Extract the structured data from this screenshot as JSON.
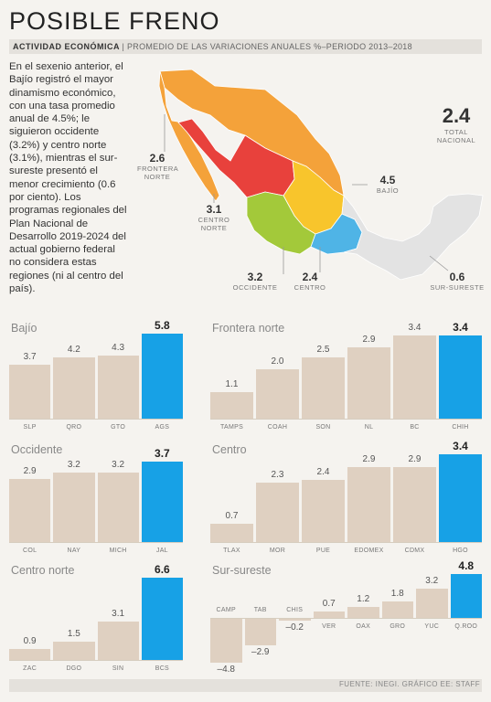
{
  "header": {
    "title": "POSIBLE FRENO",
    "kicker": "ACTIVIDAD ECONÓMICA",
    "subtitle": "PROMEDIO DE LAS VARIACIONES ANUALES %–PERIODO 2013–2018"
  },
  "intro": "En el sexenio anterior, el Bajío registró el mayor dinamismo económico, con una tasa promedio anual de 4.5%; le siguieron occidente (3.2%) y centro norte (3.1%), mientras el sur-sureste presentó el menor crecimiento (0.6 por ciento). Los programas regionales del Plan Nacional de Desarrollo 2019-2024 del actual gobierno federal no considera estas regiones (ni al centro del país).",
  "map": {
    "total_value": "2.4",
    "total_label_1": "TOTAL",
    "total_label_2": "NACIONAL",
    "regions": [
      {
        "value": "2.6",
        "line1": "FRONTERA",
        "line2": "NORTE",
        "color": "#f4a23a"
      },
      {
        "value": "3.1",
        "line1": "CENTRO",
        "line2": "NORTE",
        "color": "#e8413c"
      },
      {
        "value": "4.5",
        "line1": "BAJÍO",
        "line2": "",
        "color": "#f8c52c"
      },
      {
        "value": "3.2",
        "line1": "OCCIDENTE",
        "line2": "",
        "color": "#a3c93a"
      },
      {
        "value": "2.4",
        "line1": "CENTRO",
        "line2": "",
        "color": "#4fb4e6"
      },
      {
        "value": "0.6",
        "line1": "SUR-SURESTE",
        "line2": "",
        "color": "#e3e3e3"
      }
    ]
  },
  "colors": {
    "base": "#dfd0c1",
    "highlight": "#17a1e6"
  },
  "chart_data": [
    {
      "type": "bar",
      "title": "Bajío",
      "categories": [
        "SLP",
        "QRO",
        "GTO",
        "AGS"
      ],
      "values": [
        3.7,
        4.2,
        4.3,
        5.8
      ],
      "labels": [
        "3.7",
        "4.2",
        "4.3",
        "5.8"
      ],
      "highlight": 3
    },
    {
      "type": "bar",
      "title": "Frontera norte",
      "categories": [
        "TAMPS",
        "COAH",
        "SON",
        "NL",
        "BC",
        "CHIH"
      ],
      "values": [
        1.1,
        2.0,
        2.5,
        2.9,
        3.4,
        3.4
      ],
      "labels": [
        "1.1",
        "2.0",
        "2.5",
        "2.9",
        "3.4",
        "3.4"
      ],
      "highlight": 5
    },
    {
      "type": "bar",
      "title": "Occidente",
      "categories": [
        "COL",
        "NAY",
        "MICH",
        "JAL"
      ],
      "values": [
        2.9,
        3.2,
        3.2,
        3.7
      ],
      "labels": [
        "2.9",
        "3.2",
        "3.2",
        "3.7"
      ],
      "highlight": 3
    },
    {
      "type": "bar",
      "title": "Centro",
      "categories": [
        "TLAX",
        "MOR",
        "PUE",
        "EDOMEX",
        "CDMX",
        "HGO"
      ],
      "values": [
        0.7,
        2.3,
        2.4,
        2.9,
        2.9,
        3.4
      ],
      "labels": [
        "0.7",
        "2.3",
        "2.4",
        "2.9",
        "2.9",
        "3.4"
      ],
      "highlight": 5
    },
    {
      "type": "bar",
      "title": "Centro norte",
      "categories": [
        "ZAC",
        "DGO",
        "SIN",
        "BCS"
      ],
      "values": [
        0.9,
        1.5,
        3.1,
        6.6
      ],
      "labels": [
        "0.9",
        "1.5",
        "3.1",
        "6.6"
      ],
      "highlight": 3
    },
    {
      "type": "bar",
      "title": "Sur-sureste",
      "categories": [
        "CAMP",
        "TAB",
        "CHIS",
        "VER",
        "OAX",
        "GRO",
        "YUC",
        "Q.ROO"
      ],
      "values": [
        -4.8,
        -2.9,
        -0.2,
        0.7,
        1.2,
        1.8,
        3.2,
        4.8
      ],
      "labels": [
        "–4.8",
        "–2.9",
        "–0.2",
        "0.7",
        "1.2",
        "1.8",
        "3.2",
        "4.8"
      ],
      "highlight": 7
    }
  ],
  "source": "FUENTE: INEGI. GRÁFICO EE: STAFF"
}
